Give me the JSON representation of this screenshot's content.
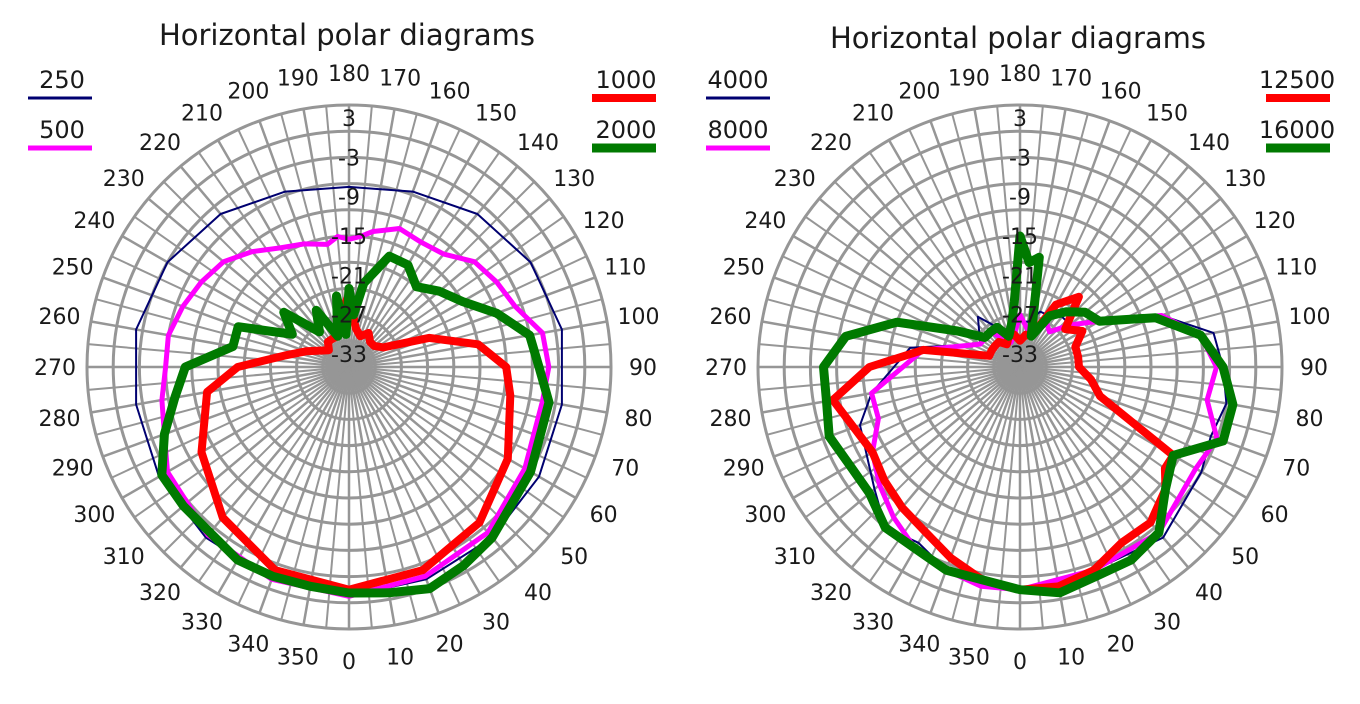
{
  "chart_data": [
    {
      "type": "polar",
      "title": "Horizontal polar diagrams",
      "angular_ticks": [
        0,
        10,
        20,
        30,
        40,
        50,
        60,
        70,
        80,
        90,
        100,
        110,
        120,
        130,
        140,
        150,
        160,
        170,
        180,
        190,
        200,
        210,
        220,
        230,
        240,
        250,
        260,
        270,
        280,
        290,
        300,
        310,
        320,
        330,
        340,
        350
      ],
      "radial_ticks": [
        -33,
        -27,
        -21,
        -15,
        -9,
        -3,
        3
      ],
      "rlim": [
        -35,
        5
      ],
      "angle_zero": "bottom",
      "angle_direction": "counterclockwise",
      "series": [
        {
          "name": "250",
          "color": "#000070",
          "stroke": 2,
          "angles": [
            0,
            20,
            40,
            60,
            80,
            100,
            120,
            140,
            160,
            180,
            200,
            220,
            240,
            260,
            280,
            300,
            320,
            340
          ],
          "values": [
            0,
            -0.5,
            -1,
            -1.5,
            -2,
            -2,
            -3,
            -4.5,
            -6.5,
            -7.5,
            -6.5,
            -4.5,
            -3,
            -2,
            -2,
            -1.5,
            -1,
            -0.5
          ]
        },
        {
          "name": "500",
          "color": "#ff00ff",
          "stroke": 5,
          "angles": [
            0,
            20,
            40,
            60,
            80,
            90,
            100,
            110,
            120,
            130,
            140,
            150,
            160,
            170,
            175,
            180,
            185,
            190,
            200,
            210,
            220,
            230,
            240,
            250,
            260,
            270,
            280,
            290,
            300,
            320,
            340
          ],
          "values": [
            0,
            -1,
            -2,
            -4,
            -5,
            -4.5,
            -5,
            -8,
            -9,
            -10,
            -12.5,
            -13,
            -12.5,
            -14,
            -15,
            -15.5,
            -15,
            -16,
            -15,
            -14,
            -12,
            -10,
            -9,
            -8,
            -7,
            -7,
            -6,
            -5,
            -3,
            -1.5,
            -0.5
          ]
        },
        {
          "name": "1000",
          "color": "#ff0000",
          "stroke": 8,
          "angles": [
            0,
            20,
            40,
            60,
            80,
            90,
            100,
            110,
            120,
            130,
            140,
            150,
            160,
            170,
            180,
            190,
            200,
            210,
            220,
            230,
            240,
            250,
            260,
            270,
            280,
            300,
            320,
            340
          ],
          "values": [
            -1,
            -2,
            -4,
            -7,
            -10,
            -11,
            -15,
            -22,
            -29,
            -30,
            -30,
            -29,
            -30,
            -29,
            -24,
            -27,
            -30,
            -30,
            -30,
            -31,
            -30,
            -28,
            -25,
            -18,
            -13,
            -9,
            -5,
            -2
          ]
        },
        {
          "name": "2000",
          "color": "#007a00",
          "stroke": 9,
          "angles": [
            0,
            10,
            20,
            30,
            40,
            60,
            80,
            90,
            100,
            110,
            120,
            130,
            140,
            150,
            160,
            170,
            175,
            180,
            185,
            190,
            200,
            210,
            220,
            230,
            240,
            250,
            260,
            270,
            280,
            290,
            300,
            310,
            320,
            330,
            340,
            350
          ],
          "values": [
            -0.5,
            0,
            1,
            0,
            -1,
            -3,
            -4,
            -6,
            -7,
            -11,
            -15,
            -17,
            -19,
            -17,
            -17,
            -22,
            -27,
            -23,
            -30,
            -24,
            -30,
            -25,
            -28,
            -22,
            -25,
            -17,
            -17,
            -10,
            -8,
            -5,
            -2,
            -2,
            -2,
            -1,
            -1,
            -1
          ]
        }
      ],
      "legend": [
        "250",
        "500",
        "1000",
        "2000"
      ]
    },
    {
      "type": "polar",
      "title": "Horizontal polar diagrams",
      "angular_ticks": [
        0,
        10,
        20,
        30,
        40,
        50,
        60,
        70,
        80,
        90,
        100,
        110,
        120,
        130,
        140,
        150,
        160,
        170,
        180,
        190,
        200,
        210,
        220,
        230,
        240,
        250,
        260,
        270,
        280,
        290,
        300,
        310,
        320,
        330,
        340,
        350
      ],
      "radial_ticks": [
        -33,
        -27,
        -21,
        -15,
        -9,
        -3,
        3
      ],
      "rlim": [
        -35,
        5
      ],
      "angle_zero": "bottom",
      "angle_direction": "counterclockwise",
      "series": [
        {
          "name": "4000",
          "color": "#000070",
          "stroke": 2,
          "angles": [
            0,
            20,
            40,
            60,
            70,
            80,
            90,
            100,
            110,
            120,
            130,
            140,
            150,
            160,
            170,
            180,
            190,
            200,
            210,
            220,
            240,
            260,
            280,
            290,
            300,
            310,
            320,
            330,
            340,
            350
          ],
          "values": [
            -1,
            -2,
            -1,
            -3,
            -4,
            -3,
            -4,
            -5,
            -12,
            -20,
            -25,
            -25,
            -26,
            -26,
            -28,
            -28,
            -30,
            -30,
            -28,
            -25,
            -28,
            -18,
            -12,
            -9,
            -8,
            -6,
            -3,
            -4,
            -2,
            -2
          ]
        },
        {
          "name": "8000",
          "color": "#ff00ff",
          "stroke": 5,
          "angles": [
            0,
            20,
            40,
            60,
            70,
            80,
            90,
            100,
            110,
            120,
            130,
            140,
            150,
            160,
            170,
            180,
            190,
            200,
            210,
            220,
            240,
            260,
            280,
            290,
            300,
            310,
            320,
            330,
            340,
            350
          ],
          "values": [
            -1,
            -2,
            -2,
            -4,
            -3,
            -6,
            -5,
            -7,
            -12,
            -21,
            -25,
            -28,
            -27,
            -30,
            -29,
            -27,
            -30,
            -31,
            -30,
            -28,
            -28,
            -20,
            -12,
            -12,
            -9,
            -7,
            -5,
            -3,
            -2,
            -1
          ]
        },
        {
          "name": "12500",
          "color": "#ff0000",
          "stroke": 8,
          "angles": [
            0,
            10,
            20,
            30,
            40,
            50,
            55,
            60,
            70,
            80,
            90,
            100,
            110,
            120,
            130,
            140,
            150,
            160,
            170,
            180,
            190,
            200,
            210,
            220,
            230,
            240,
            250,
            260,
            270,
            280,
            290,
            300,
            310,
            320,
            330,
            340,
            350
          ],
          "values": [
            -1,
            -1,
            -2,
            -4,
            -4,
            -6,
            -8,
            -8,
            -22,
            -24,
            -26,
            -26,
            -26,
            -24,
            -26,
            -21,
            -24,
            -30,
            -30,
            -31,
            -30,
            -30,
            -31,
            -30,
            -30,
            -30,
            -30,
            -20,
            -12,
            -6,
            -8,
            -9,
            -8,
            -7,
            -6,
            -4,
            -2
          ]
        },
        {
          "name": "16000",
          "color": "#007a00",
          "stroke": 9,
          "angles": [
            0,
            10,
            20,
            30,
            40,
            50,
            60,
            70,
            80,
            90,
            100,
            110,
            120,
            130,
            140,
            150,
            160,
            170,
            175,
            180,
            185,
            190,
            200,
            210,
            220,
            230,
            240,
            250,
            260,
            270,
            280,
            290,
            300,
            310,
            320,
            330,
            340,
            350
          ],
          "values": [
            -1,
            0,
            -1,
            -1,
            -2,
            -6,
            -8,
            -2,
            -2,
            -4,
            -7,
            -13,
            -21,
            -22,
            -24,
            -26,
            -30,
            -18,
            -19,
            -15,
            -25,
            -28,
            -30,
            -28,
            -28,
            -28,
            -24,
            -15,
            -8,
            -5,
            -5,
            -4,
            -5,
            -5,
            -3,
            -3,
            -2,
            -2
          ]
        }
      ],
      "legend": [
        "4000",
        "8000",
        "12500",
        "16000"
      ]
    }
  ]
}
